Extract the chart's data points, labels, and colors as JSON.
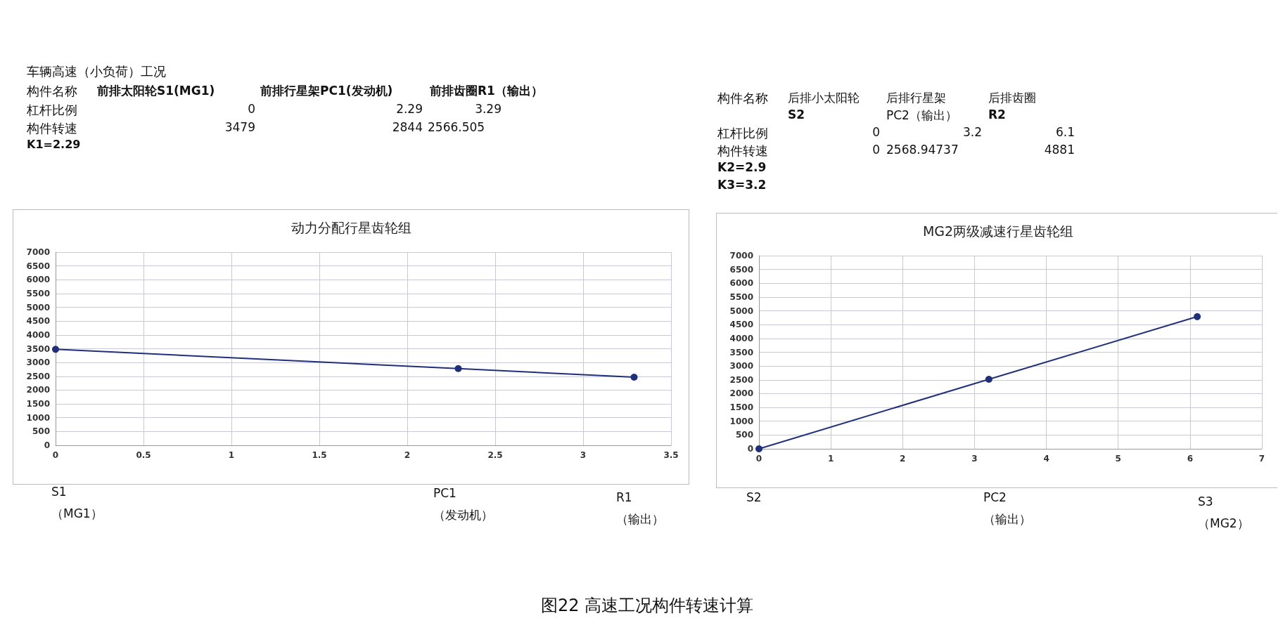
{
  "chart_data": [
    {
      "type": "line",
      "title": "动力分配行星齿轮组",
      "x": [
        0,
        2.29,
        3.29
      ],
      "series": [
        {
          "color": "#1f2f7a",
          "values": [
            3479,
            2780,
            2470
          ]
        }
      ],
      "xlim": [
        0,
        3.5
      ],
      "xticks": [
        0,
        0.5,
        1,
        1.5,
        2,
        2.5,
        3,
        3.5
      ],
      "ylim": [
        0,
        7000
      ],
      "yticks": [
        0,
        500,
        1000,
        1500,
        2000,
        2500,
        3000,
        3500,
        4000,
        4500,
        5000,
        5500,
        6000,
        6500,
        7000
      ],
      "grid": true,
      "marker": "circle",
      "annotations": [
        "车辆高速（小负荷）工况",
        "构件名称",
        "前排太阳轮S1(MG1)",
        "前排行星架PC1(发动机)",
        "前排齿圈R1（输出）",
        "杠杆比例",
        "0",
        "2.29",
        "3.29",
        "构件转速",
        "3479",
        "2844",
        "2566.505",
        "K1=2.29",
        "S1",
        "（MG1）",
        "PC1",
        "（发动机）",
        "R1",
        "（输出）"
      ]
    },
    {
      "type": "line",
      "title": "MG2两级减速行星齿轮组",
      "x": [
        0,
        3.2,
        6.1
      ],
      "series": [
        {
          "color": "#1f2f7a",
          "values": [
            0,
            2520,
            4790
          ]
        }
      ],
      "xlim": [
        0,
        7
      ],
      "xticks": [
        0,
        1,
        2,
        3,
        4,
        5,
        6,
        7
      ],
      "ylim": [
        0,
        7000
      ],
      "yticks": [
        0,
        500,
        1000,
        1500,
        2000,
        2500,
        3000,
        3500,
        4000,
        4500,
        5000,
        5500,
        6000,
        6500,
        7000
      ],
      "grid": true,
      "marker": "circle",
      "annotations": [
        "构件名称",
        "后排小太阳轮",
        "后排行星架",
        "后排齿圈",
        "S2",
        "PC2（输出）",
        "R2",
        "杠杆比例",
        "0",
        "3.2",
        "6.1",
        "构件转速",
        "0",
        "2568.94737",
        "4881",
        "K2=2.9",
        "K3=3.2",
        "S2",
        "PC2",
        "（输出）",
        "S3",
        "（MG2）",
        "图22 高速工况构件转速计算"
      ]
    }
  ]
}
